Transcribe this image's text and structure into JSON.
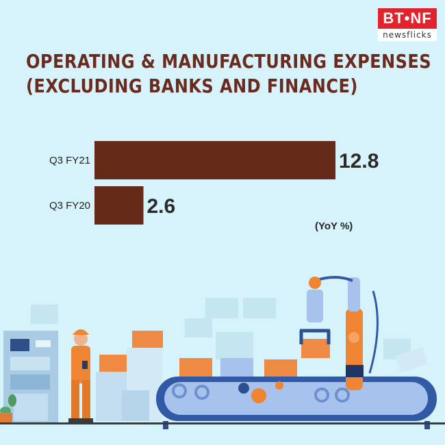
{
  "brand": {
    "logo_top": "BT•NF",
    "logo_bottom": "newsflicks",
    "red": "#e0232c"
  },
  "title_lines": [
    "OPERATING & MANUFACTURING EXPENSES",
    "(EXCLUDING BANKS AND FINANCE)"
  ],
  "unit_label": "(YoY %)",
  "colors": {
    "background": "#d6f3fb",
    "bar": "#652a18",
    "title": "#6a2b1e"
  },
  "chart_data": {
    "type": "bar",
    "orientation": "horizontal",
    "title": "OPERATING & MANUFACTURING EXPENSES (EXCLUDING BANKS AND FINANCE)",
    "categories": [
      "Q3 FY21",
      "Q3 FY20"
    ],
    "values": [
      12.8,
      2.6
    ],
    "value_labels": [
      "12.8",
      "2.6"
    ],
    "unit": "(YoY %)",
    "xlim": [
      0,
      12.8
    ],
    "grid": false,
    "legend": "none"
  },
  "illustration": {
    "subject": "factory assembly line with robotic arm, conveyor belt, boxes and worker"
  }
}
